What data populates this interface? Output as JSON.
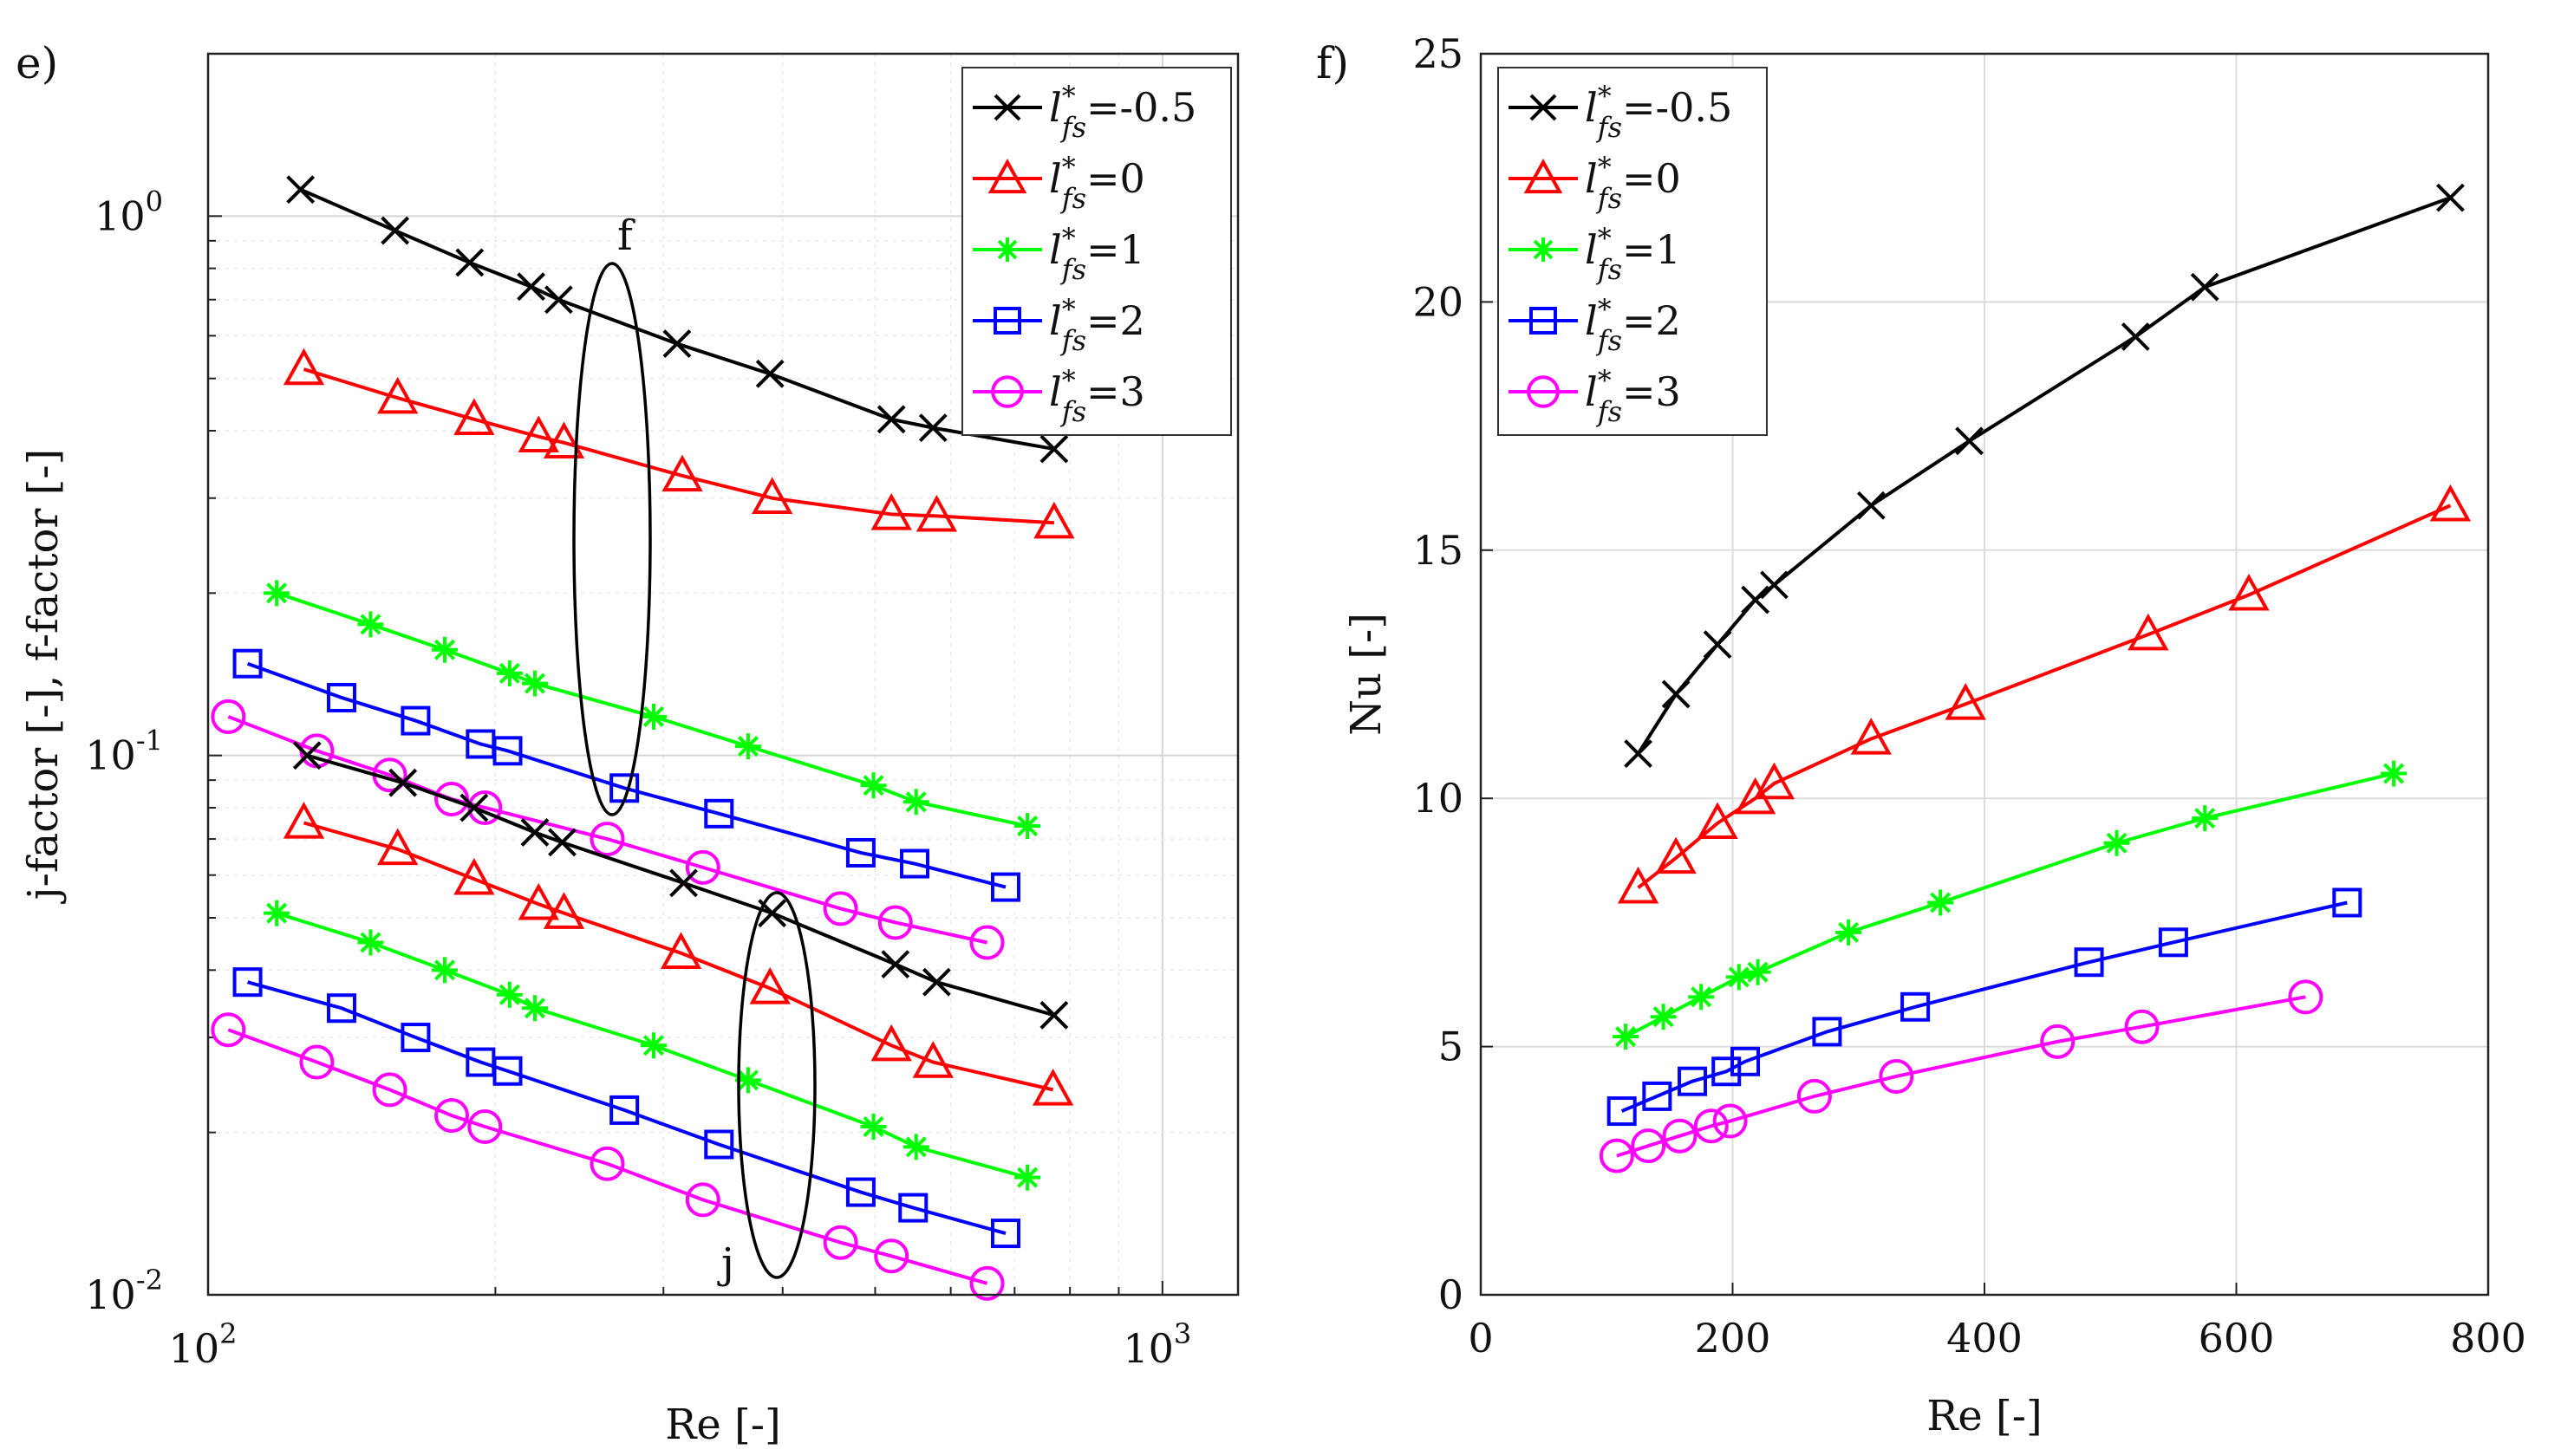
{
  "panels": [
    {
      "panel_label": "e)",
      "xlabel": "Re [-]",
      "ylabel": "j-factor [-], f-factor [-]",
      "legend_title": "",
      "annotations": [
        "f",
        "j"
      ]
    },
    {
      "panel_label": "f)",
      "xlabel": "Re [-]",
      "ylabel": "Nu [-]",
      "legend_title": "",
      "annotations": []
    }
  ],
  "legend": {
    "entries": [
      {
        "var": "l",
        "sup": "*",
        "sub": "fs",
        "value": "=-0.5",
        "marker": "x",
        "color": "#000000"
      },
      {
        "var": "l",
        "sup": "*",
        "sub": "fs",
        "value": "=0",
        "marker": "triangle",
        "color": "#ff0000"
      },
      {
        "var": "l",
        "sup": "*",
        "sub": "fs",
        "value": "=1",
        "marker": "asterisk",
        "color": "#00ff00"
      },
      {
        "var": "l",
        "sup": "*",
        "sub": "fs",
        "value": "=2",
        "marker": "square",
        "color": "#0000ff"
      },
      {
        "var": "l",
        "sup": "*",
        "sub": "fs",
        "value": "=3",
        "marker": "circle",
        "color": "#ff00ff"
      }
    ]
  },
  "chart_data": [
    {
      "type": "line",
      "xscale": "log",
      "yscale": "log",
      "xlim": [
        100,
        1200
      ],
      "ylim": [
        0.01,
        2
      ],
      "grid": true,
      "legend_placement": "top-right",
      "x_ticks": [
        {
          "base": "10",
          "exp": "2",
          "value": 100
        },
        {
          "base": "10",
          "exp": "3",
          "value": 1000
        }
      ],
      "y_ticks": [
        {
          "base": "10",
          "exp": "-2",
          "value": 0.01
        },
        {
          "base": "10",
          "exp": "-1",
          "value": 0.1
        },
        {
          "base": "10",
          "exp": "0",
          "value": 1
        }
      ],
      "series": [
        {
          "group": "f",
          "legend_index": 0,
          "x": [
            125,
            157,
            188,
            218,
            233,
            310,
            388,
            520,
            575,
            770
          ],
          "y": [
            1.12,
            0.94,
            0.82,
            0.74,
            0.7,
            0.58,
            0.51,
            0.42,
            0.405,
            0.37
          ]
        },
        {
          "group": "f",
          "legend_index": 1,
          "x": [
            126,
            158,
            190,
            222,
            236,
            314,
            390,
            520,
            580,
            770
          ],
          "y": [
            0.52,
            0.46,
            0.42,
            0.39,
            0.38,
            0.33,
            0.3,
            0.28,
            0.278,
            0.27
          ]
        },
        {
          "group": "f",
          "legend_index": 2,
          "x": [
            118,
            148,
            177,
            207,
            220,
            293,
            368,
            498,
            552,
            722
          ],
          "y": [
            0.2,
            0.175,
            0.157,
            0.142,
            0.136,
            0.118,
            0.104,
            0.088,
            0.082,
            0.074
          ]
        },
        {
          "group": "f",
          "legend_index": 3,
          "x": [
            110,
            138,
            165,
            193,
            206,
            273,
            343,
            483,
            550,
            685
          ],
          "y": [
            0.148,
            0.128,
            0.116,
            0.105,
            0.102,
            0.087,
            0.078,
            0.066,
            0.063,
            0.057
          ]
        },
        {
          "group": "f",
          "legend_index": 4,
          "x": [
            105,
            130,
            155,
            180,
            195,
            262,
            330,
            460,
            525,
            655
          ],
          "y": [
            0.118,
            0.102,
            0.092,
            0.083,
            0.08,
            0.07,
            0.062,
            0.052,
            0.049,
            0.045
          ]
        },
        {
          "group": "j",
          "legend_index": 0,
          "x": [
            127,
            160,
            190,
            220,
            235,
            315,
            390,
            525,
            580,
            770
          ],
          "y": [
            0.1,
            0.089,
            0.08,
            0.072,
            0.069,
            0.058,
            0.051,
            0.041,
            0.038,
            0.033
          ]
        },
        {
          "group": "j",
          "legend_index": 1,
          "x": [
            126,
            158,
            190,
            222,
            236,
            313,
            388,
            520,
            575,
            768
          ],
          "y": [
            0.075,
            0.067,
            0.059,
            0.053,
            0.051,
            0.043,
            0.037,
            0.029,
            0.027,
            0.024
          ]
        },
        {
          "group": "j",
          "legend_index": 2,
          "x": [
            118,
            148,
            177,
            207,
            220,
            293,
            368,
            498,
            552,
            722
          ],
          "y": [
            0.051,
            0.045,
            0.04,
            0.036,
            0.034,
            0.029,
            0.025,
            0.0205,
            0.0188,
            0.0165
          ]
        },
        {
          "group": "j",
          "legend_index": 3,
          "x": [
            110,
            138,
            165,
            193,
            206,
            273,
            343,
            483,
            548,
            685
          ],
          "y": [
            0.038,
            0.034,
            0.03,
            0.027,
            0.026,
            0.022,
            0.019,
            0.0155,
            0.0145,
            0.013
          ]
        },
        {
          "group": "j",
          "legend_index": 4,
          "x": [
            105,
            130,
            155,
            180,
            195,
            262,
            330,
            460,
            520,
            655
          ],
          "y": [
            0.031,
            0.027,
            0.024,
            0.0215,
            0.0205,
            0.0175,
            0.015,
            0.0125,
            0.0118,
            0.0105
          ]
        }
      ]
    },
    {
      "type": "line",
      "xscale": "linear",
      "yscale": "linear",
      "xlim": [
        0,
        800
      ],
      "ylim": [
        0,
        25
      ],
      "grid": true,
      "legend_placement": "top-left",
      "x_ticks": [
        0,
        200,
        400,
        600,
        800
      ],
      "y_ticks": [
        0,
        5,
        10,
        15,
        20,
        25
      ],
      "series": [
        {
          "legend_index": 0,
          "x": [
            125,
            155,
            188,
            218,
            233,
            310,
            388,
            520,
            575,
            770
          ],
          "y": [
            10.9,
            12.1,
            13.1,
            14.0,
            14.3,
            15.9,
            17.2,
            19.3,
            20.3,
            22.1
          ]
        },
        {
          "legend_index": 1,
          "x": [
            125,
            155,
            188,
            218,
            233,
            310,
            385,
            530,
            610,
            770
          ],
          "y": [
            8.2,
            8.8,
            9.5,
            10.0,
            10.3,
            11.2,
            11.9,
            13.3,
            14.1,
            15.9
          ]
        },
        {
          "legend_index": 2,
          "x": [
            115,
            145,
            175,
            205,
            220,
            292,
            365,
            505,
            575,
            725
          ],
          "y": [
            5.2,
            5.6,
            6.0,
            6.4,
            6.5,
            7.3,
            7.9,
            9.1,
            9.6,
            10.5
          ]
        },
        {
          "legend_index": 3,
          "x": [
            112,
            140,
            168,
            195,
            210,
            275,
            345,
            483,
            550,
            688
          ],
          "y": [
            3.7,
            4.0,
            4.3,
            4.5,
            4.7,
            5.3,
            5.8,
            6.7,
            7.1,
            7.9
          ]
        },
        {
          "legend_index": 4,
          "x": [
            108,
            133,
            158,
            183,
            198,
            265,
            330,
            458,
            525,
            655
          ],
          "y": [
            2.8,
            3.0,
            3.2,
            3.4,
            3.5,
            4.0,
            4.4,
            5.1,
            5.4,
            6.0
          ]
        }
      ]
    }
  ]
}
